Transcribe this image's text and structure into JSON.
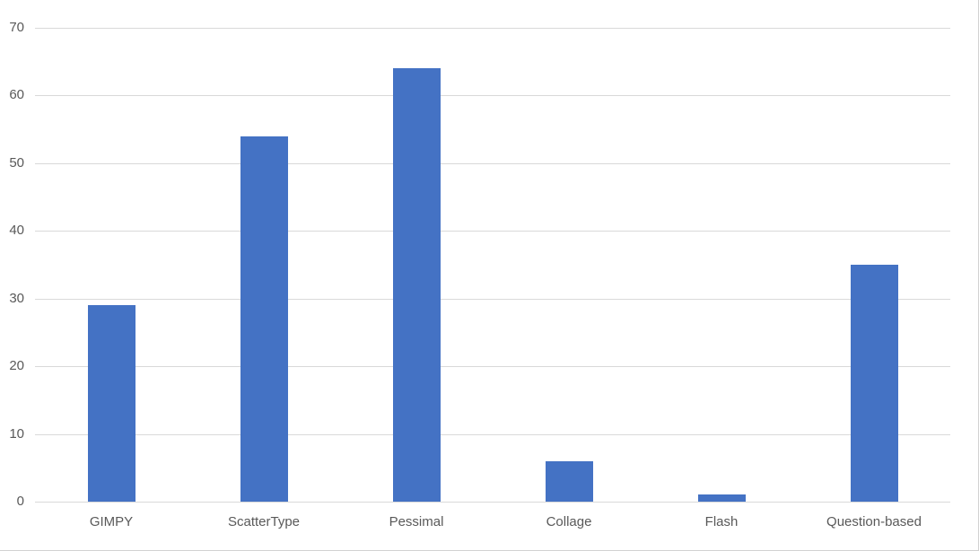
{
  "chart_data": {
    "type": "bar",
    "categories": [
      "GIMPY",
      "ScatterType",
      "Pessimal",
      "Collage",
      "Flash",
      "Question-based"
    ],
    "values": [
      29,
      54,
      64,
      6,
      1,
      35
    ],
    "title": "",
    "xlabel": "",
    "ylabel": "",
    "ylim": [
      0,
      70
    ],
    "ytick_step": 10,
    "ytick_labels": [
      "0",
      "10",
      "20",
      "30",
      "40",
      "50",
      "60",
      "70"
    ],
    "grid": true,
    "legend": false,
    "colors": {
      "bar": "#4472C4",
      "gridline": "#D9D9D9",
      "axis_line": "#D9D9D9",
      "tick_label": "#595959",
      "background": "#FFFFFF",
      "frame_border": "#D2D2D2"
    }
  }
}
